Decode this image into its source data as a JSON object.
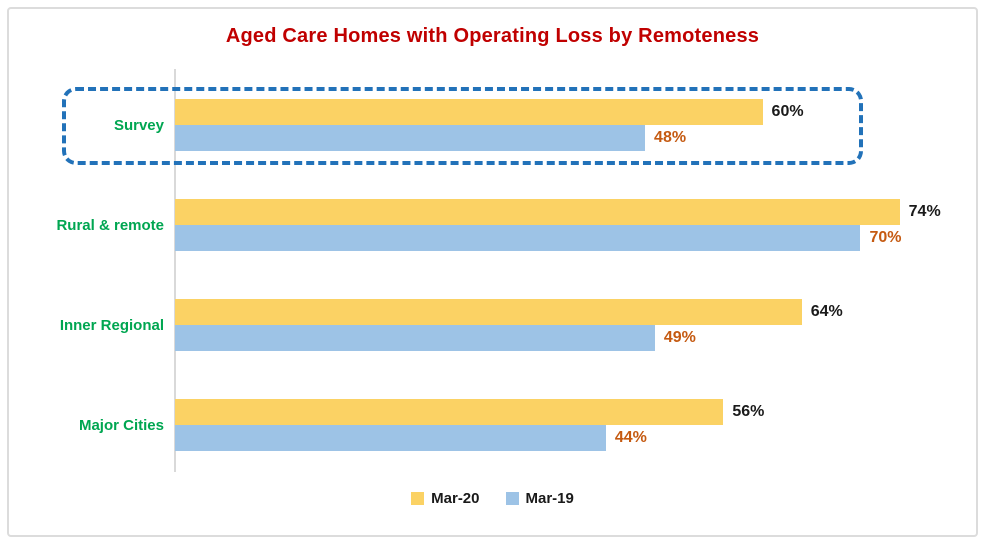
{
  "chart_data": {
    "type": "bar",
    "orientation": "horizontal",
    "title": "Aged Care Homes with Operating Loss by Remoteness",
    "categories": [
      "Survey",
      "Rural & remote",
      "Inner Regional",
      "Major Cities"
    ],
    "series": [
      {
        "name": "Mar-20",
        "values": [
          60,
          74,
          64,
          56
        ],
        "bar_color": "#FBD264",
        "label_color": "#1a1a1a"
      },
      {
        "name": "Mar-19",
        "values": [
          48,
          70,
          49,
          44
        ],
        "bar_color": "#9DC3E6",
        "label_color": "#C55A11"
      }
    ],
    "value_suffix": "%",
    "xlabel": "",
    "ylabel": "",
    "xlim": [
      0,
      82
    ],
    "grid": false,
    "legend_position": "bottom",
    "annotations": [
      {
        "type": "highlight-box",
        "target_category": "Survey",
        "style": "dashed",
        "color": "#2272B9"
      }
    ]
  },
  "colors": {
    "title": "#C00000",
    "category_label": "#00A651",
    "axis_line": "#D9D9D9",
    "highlight_border": "#2272B9",
    "frame_border": "#DCDCDC"
  },
  "legend": {
    "items": [
      {
        "label": "Mar-20",
        "color": "#FBD264"
      },
      {
        "label": "Mar-19",
        "color": "#9DC3E6"
      }
    ]
  }
}
